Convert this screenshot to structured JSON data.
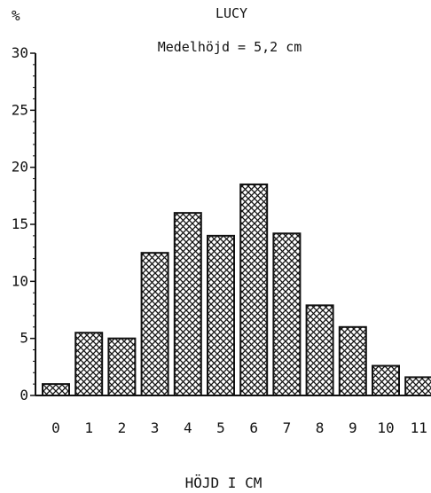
{
  "chart_data": {
    "type": "bar",
    "title": "LUCY",
    "subtitle": "Medelhöjd = 5,2 cm",
    "xlabel": "HÖJD I CM",
    "ylabel": "%",
    "categories": [
      "0",
      "1",
      "2",
      "3",
      "4",
      "5",
      "6",
      "7",
      "8",
      "9",
      "10",
      "11"
    ],
    "values": [
      1.0,
      5.5,
      5.0,
      12.5,
      16.0,
      14.0,
      18.5,
      14.2,
      7.9,
      6.0,
      2.6,
      1.6
    ],
    "ylim": [
      0,
      30
    ],
    "yticks": [
      0,
      5,
      10,
      15,
      20,
      25,
      30
    ],
    "yticklabels": [
      "0",
      "5",
      "10",
      "15",
      "20",
      "25",
      "30"
    ],
    "grid": false,
    "bar_fill": "crosshatch",
    "colors": {
      "ink": "#111111",
      "background": "#ffffff"
    }
  }
}
